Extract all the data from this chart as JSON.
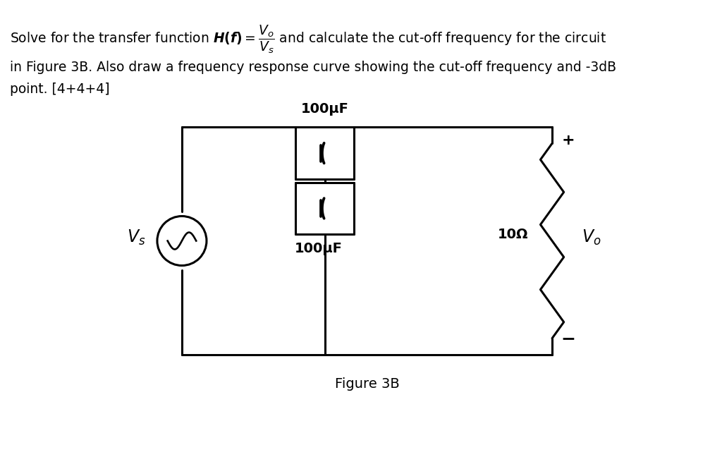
{
  "bg_color": "#ffffff",
  "text_color": "#000000",
  "line_color": "#000000",
  "line_width": 2.2,
  "title_text_line1": "Solve for the transfer function $H(f) = \\dfrac{V_o}{V_s}$ and calculate the cut-off frequency for the circuit",
  "title_text_line2": "in Figure 3B. Also draw a frequency response curve showing the cut-off frequency and -3dB",
  "title_text_line3": "point. [4+4+4]",
  "figure_label": "Figure 3B",
  "cap1_label": "100μF",
  "cap2_label": "100μF",
  "res_label": "10Ω",
  "vs_label": "$V_s$",
  "vo_label": "$V_o$",
  "plus_label": "+",
  "minus_label": "−"
}
